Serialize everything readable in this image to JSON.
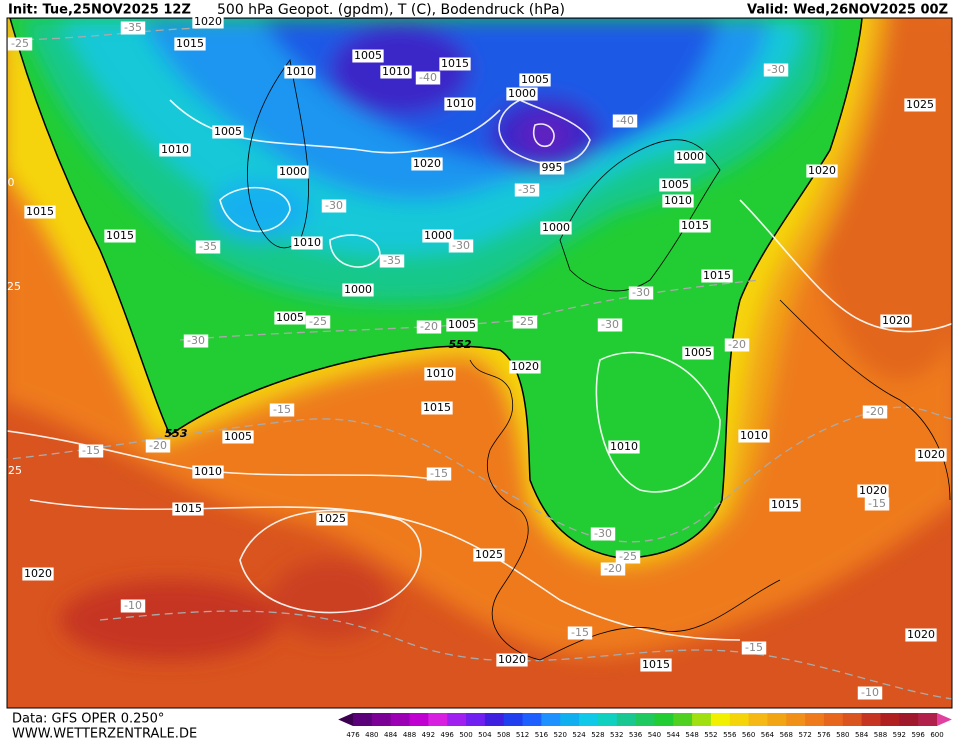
{
  "header": {
    "init": "Init: Tue,25NOV2025 12Z",
    "title": "500 hPa Geopot. (gpdm), T (C), Bodendruck (hPa)",
    "valid": "Valid: Wed,26NOV2025 00Z"
  },
  "footer": {
    "source": "Data: GFS OPER 0.250°",
    "site": "WWW.WETTERZENTRALE.DE"
  },
  "colorbar": {
    "labels": [
      476,
      480,
      484,
      488,
      492,
      496,
      500,
      504,
      508,
      512,
      516,
      520,
      524,
      528,
      532,
      536,
      540,
      544,
      548,
      552,
      556,
      560,
      564,
      568,
      572,
      576,
      580,
      584,
      588,
      592,
      596,
      600
    ]
  },
  "pressure_labels": [
    1020,
    1015,
    1010,
    1005,
    1010,
    1015,
    1005,
    1000,
    1010,
    995,
    1005,
    1010,
    1000,
    1020,
    1000,
    1005,
    1010,
    1020,
    1025,
    1015,
    1015,
    1010,
    1000,
    1000,
    1015,
    1015,
    1000,
    1005,
    1005,
    1020,
    1005,
    1010,
    1015,
    1020,
    1005,
    1010,
    1015,
    1010,
    1010,
    1020,
    1020,
    1015,
    1025,
    1025,
    1020,
    1020,
    1020,
    1015
  ],
  "temperature_labels": [
    -35,
    -25,
    -30,
    -40,
    -40,
    -35,
    -30,
    -35,
    -35,
    -30,
    -25,
    -20,
    -25,
    -30,
    -30,
    -30,
    -20,
    -15,
    -15,
    -20,
    -20,
    -15,
    -15,
    -30,
    -25,
    -20,
    -10,
    -15,
    -15,
    -10
  ],
  "geopotential_labels": [
    552,
    553
  ],
  "edge_labels": [
    0,
    25,
    25
  ]
}
